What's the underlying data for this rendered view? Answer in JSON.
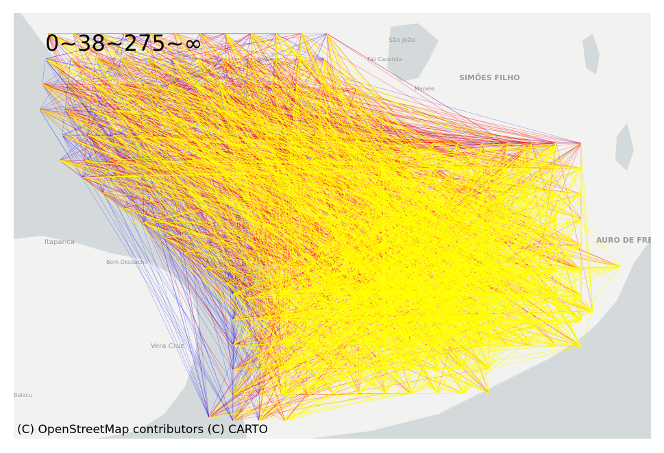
{
  "legend": {
    "text": "0~38~275~∞",
    "breaks": [
      "0",
      "38",
      "275",
      "∞"
    ]
  },
  "attribution": "(C) OpenStreetMap contributors (C) CARTO",
  "places": [
    {
      "name": "São João"
    },
    {
      "name": "Faz Cacenda"
    },
    {
      "name": "SIMÕES FILHO"
    },
    {
      "name": "Mapele"
    },
    {
      "name": "Itaparica"
    },
    {
      "name": "Bom Despacho"
    },
    {
      "name": "Vera Cruz"
    },
    {
      "name": "Baiacu"
    },
    {
      "name": "AURO DE FREIT"
    }
  ],
  "colors": {
    "water": "#d4dadc",
    "land": "#f2f2f0",
    "low_flow": "#0000ff",
    "mid_flow": "#ff0000",
    "high_flow": "#ffff00"
  }
}
